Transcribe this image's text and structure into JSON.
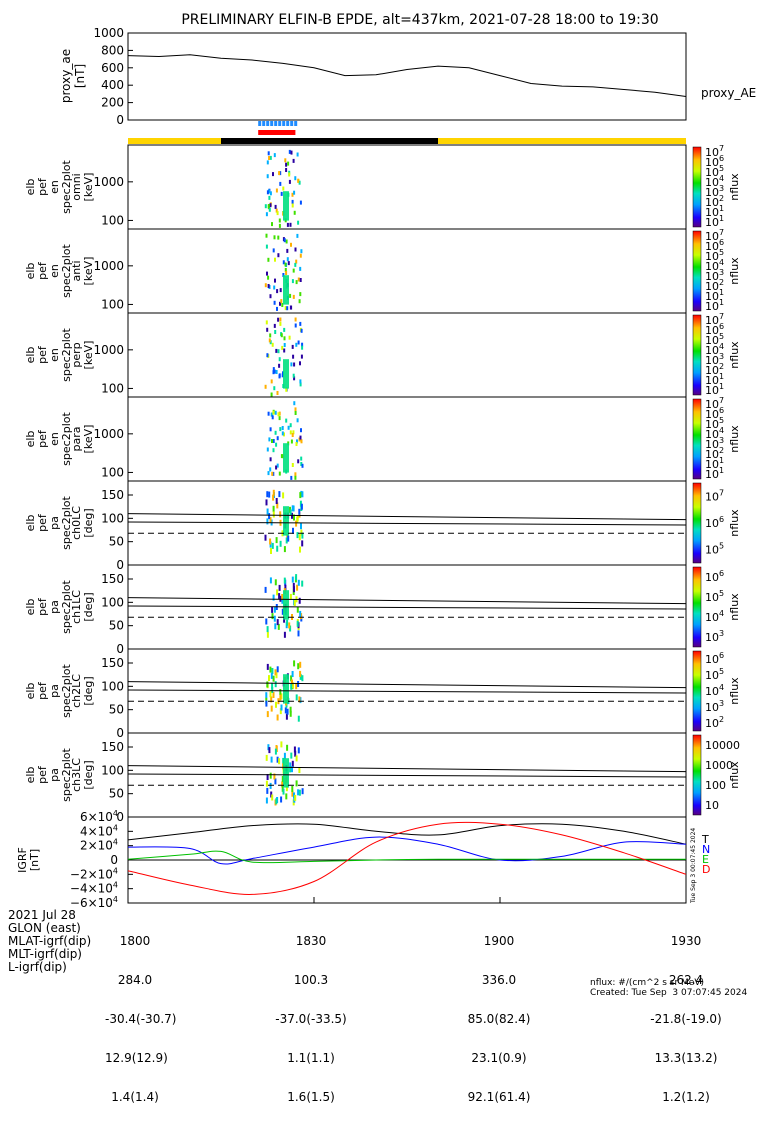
{
  "title": "PRELIMINARY ELFIN-B EPDE, alt=437km, 2021-07-28 18:00 to 19:30",
  "colors": {
    "line": "#000000",
    "yellow": "#ffd400",
    "black_bar": "#000000",
    "blue_bar": "#1e8bff",
    "red_bar": "#ff0000",
    "bx": "#000000",
    "by": "#0000ff",
    "bz": "#00c000",
    "bd": "#ff0000"
  },
  "chart_data": [
    {
      "id": "proxy_ae",
      "type": "line",
      "ylabel": [
        "proxy_ae",
        "[nT]"
      ],
      "yticks": [
        "0",
        "200",
        "400",
        "600",
        "800",
        "1000"
      ],
      "ylim": [
        0,
        1000
      ],
      "series_label": "proxy_AE",
      "x": [
        "18:00",
        "18:05",
        "18:10",
        "18:15",
        "18:20",
        "18:25",
        "18:30",
        "18:35",
        "18:40",
        "18:45",
        "18:50",
        "18:55",
        "19:00",
        "19:05",
        "19:10",
        "19:15",
        "19:20",
        "19:25",
        "19:30"
      ],
      "values": [
        740,
        730,
        750,
        710,
        690,
        650,
        600,
        510,
        520,
        580,
        620,
        600,
        510,
        420,
        390,
        380,
        350,
        320,
        270
      ]
    },
    {
      "id": "state_bar",
      "type": "timeline",
      "segments": [
        {
          "color": "yellow",
          "start": "18:00",
          "end": "18:15"
        },
        {
          "color": "black_bar",
          "start": "18:15",
          "end": "18:50"
        },
        {
          "color": "yellow",
          "start": "18:50",
          "end": "19:30"
        }
      ],
      "blue": {
        "start": "18:21",
        "end": "18:27"
      },
      "red": {
        "start": "18:21",
        "end": "18:27"
      }
    },
    {
      "id": "spec_omni",
      "type": "heatmap",
      "ylabel": [
        "elb",
        "pef",
        "en",
        "spec2plot",
        "omni",
        "[keV]"
      ],
      "yticks": [
        "100",
        "1000"
      ],
      "cbar": [
        "10",
        "10",
        "10",
        "10",
        "10",
        "10",
        "10",
        "10"
      ],
      "cbar_exp": [
        "1",
        "1",
        "2",
        "3",
        "4",
        "5",
        "6",
        "7"
      ],
      "cbar_label": "nflux"
    },
    {
      "id": "spec_anti",
      "type": "heatmap",
      "ylabel": [
        "elb",
        "pef",
        "en",
        "spec2plot",
        "anti",
        "[keV]"
      ],
      "yticks": [
        "100",
        "1000"
      ],
      "cbar": [
        "10",
        "10",
        "10",
        "10",
        "10",
        "10",
        "10",
        "10"
      ],
      "cbar_exp": [
        "1",
        "1",
        "2",
        "3",
        "4",
        "5",
        "6",
        "7"
      ],
      "cbar_label": "nflux"
    },
    {
      "id": "spec_perp",
      "type": "heatmap",
      "ylabel": [
        "elb",
        "pef",
        "en",
        "spec2plot",
        "perp",
        "[keV]"
      ],
      "yticks": [
        "100",
        "1000"
      ],
      "cbar": [
        "10",
        "10",
        "10",
        "10",
        "10",
        "10",
        "10",
        "10"
      ],
      "cbar_exp": [
        "1",
        "1",
        "2",
        "3",
        "4",
        "5",
        "6",
        "7"
      ],
      "cbar_label": "nflux"
    },
    {
      "id": "spec_para",
      "type": "heatmap",
      "ylabel": [
        "elb",
        "pef",
        "en",
        "spec2plot",
        "para",
        "[keV]"
      ],
      "yticks": [
        "100",
        "1000"
      ],
      "cbar": [
        "10",
        "10",
        "10",
        "10",
        "10",
        "10",
        "10",
        "10"
      ],
      "cbar_exp": [
        "1",
        "1",
        "2",
        "3",
        "4",
        "5",
        "6",
        "7"
      ],
      "cbar_label": "nflux"
    },
    {
      "id": "pa_ch0",
      "type": "heatmap",
      "ylabel": [
        "elb",
        "pef",
        "pa",
        "spec2plot",
        "ch0LC",
        "[deg]"
      ],
      "yticks": [
        "0",
        "50",
        "100",
        "150"
      ],
      "ylim": [
        0,
        180
      ],
      "cbar": [
        "10",
        "10",
        "10"
      ],
      "cbar_exp": [
        "5",
        "6",
        "7"
      ],
      "cbar_label": "nflux"
    },
    {
      "id": "pa_ch1",
      "type": "heatmap",
      "ylabel": [
        "elb",
        "pef",
        "pa",
        "spec2plot",
        "ch1LC",
        "[deg]"
      ],
      "yticks": [
        "0",
        "50",
        "100",
        "150"
      ],
      "ylim": [
        0,
        180
      ],
      "cbar": [
        "10",
        "10",
        "10",
        "10"
      ],
      "cbar_exp": [
        "3",
        "4",
        "5",
        "6"
      ],
      "cbar_label": "nflux"
    },
    {
      "id": "pa_ch2",
      "type": "heatmap",
      "ylabel": [
        "elb",
        "pef",
        "pa",
        "spec2plot",
        "ch2LC",
        "[deg]"
      ],
      "yticks": [
        "0",
        "50",
        "100",
        "150"
      ],
      "ylim": [
        0,
        180
      ],
      "cbar": [
        "10",
        "10",
        "10",
        "10",
        "10"
      ],
      "cbar_exp": [
        "2",
        "3",
        "4",
        "5",
        "6"
      ],
      "cbar_label": "nflux"
    },
    {
      "id": "pa_ch3",
      "type": "heatmap",
      "ylabel": [
        "elb",
        "pef",
        "pa",
        "spec2plot",
        "ch3LC",
        "[deg]"
      ],
      "yticks": [
        "0",
        "50",
        "100",
        "150"
      ],
      "ylim": [
        0,
        180
      ],
      "cbar": [
        "10",
        "100",
        "1000",
        "10000"
      ],
      "cbar_exp": [
        "",
        "",
        "",
        ""
      ],
      "cbar_label": "nflux"
    },
    {
      "id": "igrf",
      "type": "line",
      "ylabel": [
        "IGRF",
        "[nT]"
      ],
      "yticks": [
        "−6×10",
        "−4×10",
        "−2×10",
        "0",
        "2×10",
        "4×10",
        "6×10"
      ],
      "ylim": [
        -60000,
        60000
      ],
      "legend": [
        "T",
        "N",
        "E",
        "D"
      ],
      "series": [
        {
          "name": "T",
          "color": "bx",
          "x": [
            0,
            10,
            20,
            30,
            40,
            50,
            60,
            70,
            80,
            90
          ],
          "values": [
            28000,
            38000,
            48000,
            50000,
            40000,
            35000,
            48000,
            50000,
            40000,
            22000
          ]
        },
        {
          "name": "N",
          "color": "by",
          "x": [
            0,
            10,
            15,
            20,
            30,
            40,
            50,
            60,
            70,
            80,
            90
          ],
          "values": [
            18000,
            16000,
            -5000,
            2000,
            18000,
            32000,
            22000,
            0,
            5000,
            25000,
            22000
          ]
        },
        {
          "name": "E",
          "color": "bz",
          "x": [
            0,
            10,
            15,
            20,
            30,
            40,
            50,
            60,
            70,
            80,
            90
          ],
          "values": [
            1000,
            8000,
            12000,
            -3000,
            -2000,
            0,
            1000,
            1000,
            1000,
            1000,
            1000
          ]
        },
        {
          "name": "D",
          "color": "bd",
          "x": [
            0,
            10,
            20,
            30,
            40,
            50,
            60,
            70,
            80,
            90
          ],
          "values": [
            -15000,
            -35000,
            -48000,
            -30000,
            25000,
            50000,
            50000,
            35000,
            10000,
            -20000
          ]
        }
      ]
    }
  ],
  "footer": {
    "rows": [
      [
        "2021 Jul 28",
        "1800",
        "1830",
        "1900",
        "1930"
      ],
      [
        "GLON (east)",
        "284.0",
        "100.3",
        "336.0",
        "262.4"
      ],
      [
        "MLAT-igrf(dip)",
        "-30.4(-30.7)",
        "-37.0(-33.5)",
        "85.0(82.4)",
        "-21.8(-19.0)"
      ],
      [
        "MLT-igrf(dip)",
        "12.9(12.9)",
        "1.1(1.1)",
        "23.1(0.9)",
        "13.3(13.2)"
      ],
      [
        "L-igrf(dip)",
        "1.4(1.4)",
        "1.6(1.5)",
        "92.1(61.4)",
        "1.2(1.2)"
      ]
    ],
    "units": "nflux: #/(cm^2 s sr MeV)",
    "created": "Created: Tue Sep  3 07:07:45 2024",
    "stamp": "Tue Sep  3 00:07:45 2024"
  }
}
